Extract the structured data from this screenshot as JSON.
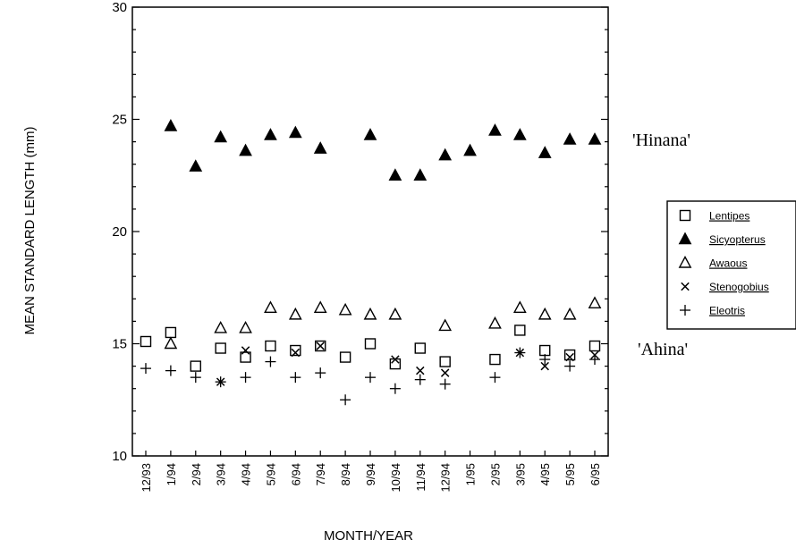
{
  "chart_data": {
    "type": "scatter",
    "xlabel": "MONTH/YEAR",
    "ylabel": "MEAN STANDARD LENGTH (mm)",
    "ylim": [
      10,
      30
    ],
    "yticks": [
      "10",
      "15",
      "20",
      "25",
      "30"
    ],
    "categories": [
      "12/93",
      "1/94",
      "2/94",
      "3/94",
      "4/94",
      "5/94",
      "6/94",
      "7/94",
      "8/94",
      "9/94",
      "10/94",
      "11/94",
      "12/94",
      "1/95",
      "2/95",
      "3/95",
      "4/95",
      "5/95",
      "6/95"
    ],
    "series": [
      {
        "name": "Lentipes",
        "marker": "open-square",
        "values": [
          15.1,
          15.5,
          14.0,
          14.8,
          14.4,
          14.9,
          14.7,
          14.9,
          14.4,
          15.0,
          14.1,
          14.8,
          14.2,
          null,
          14.3,
          15.6,
          14.7,
          14.5,
          14.9
        ]
      },
      {
        "name": "Sicyopterus",
        "marker": "filled-triangle",
        "values": [
          null,
          24.7,
          22.9,
          24.2,
          23.6,
          24.3,
          24.4,
          23.7,
          null,
          24.3,
          22.5,
          22.5,
          23.4,
          23.6,
          24.5,
          24.3,
          23.5,
          24.1,
          24.1
        ]
      },
      {
        "name": "Awaous",
        "marker": "open-triangle",
        "values": [
          null,
          15.0,
          null,
          15.7,
          15.7,
          16.6,
          16.3,
          16.6,
          16.5,
          16.3,
          16.3,
          null,
          15.8,
          null,
          15.9,
          16.6,
          16.3,
          16.3,
          16.8
        ]
      },
      {
        "name": "Stenogobius",
        "marker": "x",
        "values": [
          null,
          null,
          null,
          13.3,
          14.7,
          null,
          14.6,
          14.9,
          null,
          null,
          14.3,
          13.8,
          13.7,
          null,
          null,
          14.6,
          14.0,
          14.4,
          14.5
        ]
      },
      {
        "name": "Eleotris",
        "marker": "plus",
        "values": [
          13.9,
          13.8,
          13.5,
          13.3,
          13.5,
          14.2,
          13.5,
          13.7,
          12.5,
          13.5,
          13.0,
          13.4,
          13.2,
          null,
          13.5,
          14.6,
          14.3,
          14.0,
          14.3
        ]
      }
    ],
    "annotations": [
      "'Hinana'",
      "'Ahina'"
    ],
    "legend_position": "right",
    "grid": false
  },
  "colors": {
    "ink": "#000000",
    "background": "#ffffff"
  }
}
